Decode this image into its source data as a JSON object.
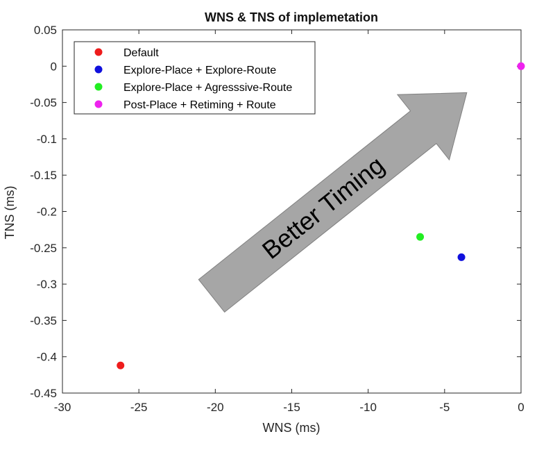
{
  "chart_data": {
    "type": "scatter",
    "title": "WNS & TNS of implemetation",
    "xlabel": "WNS (ms)",
    "ylabel": "TNS (ms)",
    "xlim": [
      -30,
      0
    ],
    "ylim": [
      -0.45,
      0.05
    ],
    "xticks": [
      -30,
      -25,
      -20,
      -15,
      -10,
      -5,
      0
    ],
    "yticks": [
      0.05,
      0,
      -0.05,
      -0.1,
      -0.15,
      -0.2,
      -0.25,
      -0.3,
      -0.35,
      -0.4,
      -0.45
    ],
    "xtick_labels": [
      "-30",
      "-25",
      "-20",
      "-15",
      "-10",
      "-5",
      "0"
    ],
    "ytick_labels": [
      "0.05",
      "0",
      "-0.05",
      "-0.1",
      "-0.15",
      "-0.2",
      "-0.25",
      "-0.3",
      "-0.35",
      "-0.4",
      "-0.45"
    ],
    "grid": false,
    "legend_position": "top-left",
    "series": [
      {
        "name": "Default",
        "color": "#ee1c1c",
        "x": [
          -26.2
        ],
        "y": [
          -0.412
        ]
      },
      {
        "name": "Explore-Place + Explore-Route",
        "color": "#1010dd",
        "x": [
          -3.9
        ],
        "y": [
          -0.263
        ]
      },
      {
        "name": "Explore-Place + Agresssive-Route",
        "color": "#22ee22",
        "x": [
          -6.6
        ],
        "y": [
          -0.235
        ]
      },
      {
        "name": "Post-Place + Retiming + Route",
        "color": "#ee22ee",
        "x": [
          0
        ],
        "y": [
          0.0
        ]
      }
    ],
    "annotation": {
      "text": "Better Timing",
      "fill": "#a6a6a6",
      "stroke": "#7f7f7f"
    }
  }
}
